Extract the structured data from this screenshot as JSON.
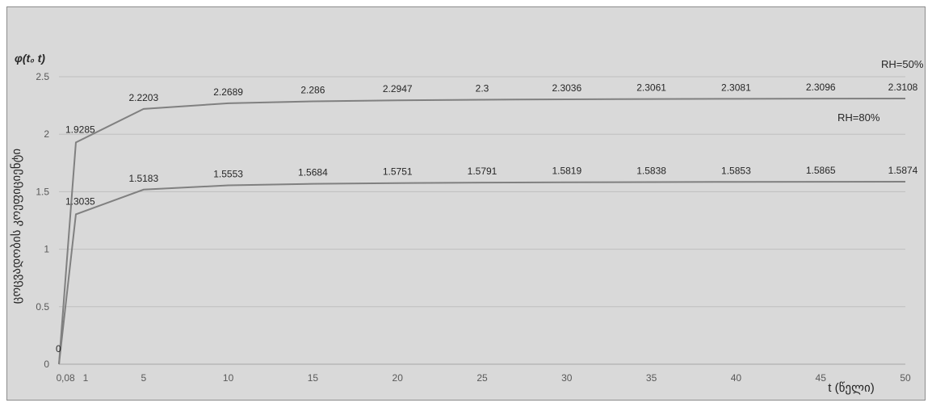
{
  "chart_data": {
    "type": "line",
    "y_title": "φ(t₀ t)",
    "ylabel": "ცოცვადობის კოეფიციენტი",
    "xlabel": "t (წელი)",
    "ylim": [
      0,
      2.5
    ],
    "y_ticks": [
      0,
      0.5,
      1,
      1.5,
      2,
      2.5
    ],
    "x_ticks": [
      {
        "v": 0,
        "label": "0"
      },
      {
        "v": 0.08,
        "label": ",08"
      },
      {
        "v": 1,
        "label": "1"
      },
      {
        "v": 5,
        "label": "5"
      },
      {
        "v": 10,
        "label": "10"
      },
      {
        "v": 15,
        "label": "15"
      },
      {
        "v": 20,
        "label": "20"
      },
      {
        "v": 25,
        "label": "25"
      },
      {
        "v": 30,
        "label": "30"
      },
      {
        "v": 35,
        "label": "35"
      },
      {
        "v": 40,
        "label": "40"
      },
      {
        "v": 45,
        "label": "45"
      },
      {
        "v": 50,
        "label": "50"
      }
    ],
    "grid": true,
    "line_color": "#808080",
    "series": [
      {
        "name": "RH=50%",
        "x": [
          0.08,
          1,
          5,
          10,
          15,
          20,
          25,
          30,
          35,
          40,
          45,
          50
        ],
        "values": [
          0,
          1.9285,
          2.2203,
          2.2689,
          2.286,
          2.2947,
          2.3,
          2.3036,
          2.3061,
          2.3081,
          2.3096,
          2.3108
        ],
        "labels": [
          "0",
          "1.9285",
          "2.2203",
          "2.2689",
          "2.286",
          "2.2947",
          "2.3",
          "2.3036",
          "2.3061",
          "2.3081",
          "2.3096",
          "2.3108"
        ]
      },
      {
        "name": "RH=80%",
        "x": [
          0.08,
          1,
          5,
          10,
          15,
          20,
          25,
          30,
          35,
          40,
          45,
          50
        ],
        "values": [
          0,
          1.3035,
          1.5183,
          1.5553,
          1.5684,
          1.5751,
          1.5791,
          1.5819,
          1.5838,
          1.5853,
          1.5865,
          1.5874
        ],
        "labels": [
          "",
          "1.3035",
          "1.5183",
          "1.5553",
          "1.5684",
          "1.5751",
          "1.5791",
          "1.5819",
          "1.5838",
          "1.5853",
          "1.5865",
          "1.5874"
        ]
      }
    ]
  }
}
